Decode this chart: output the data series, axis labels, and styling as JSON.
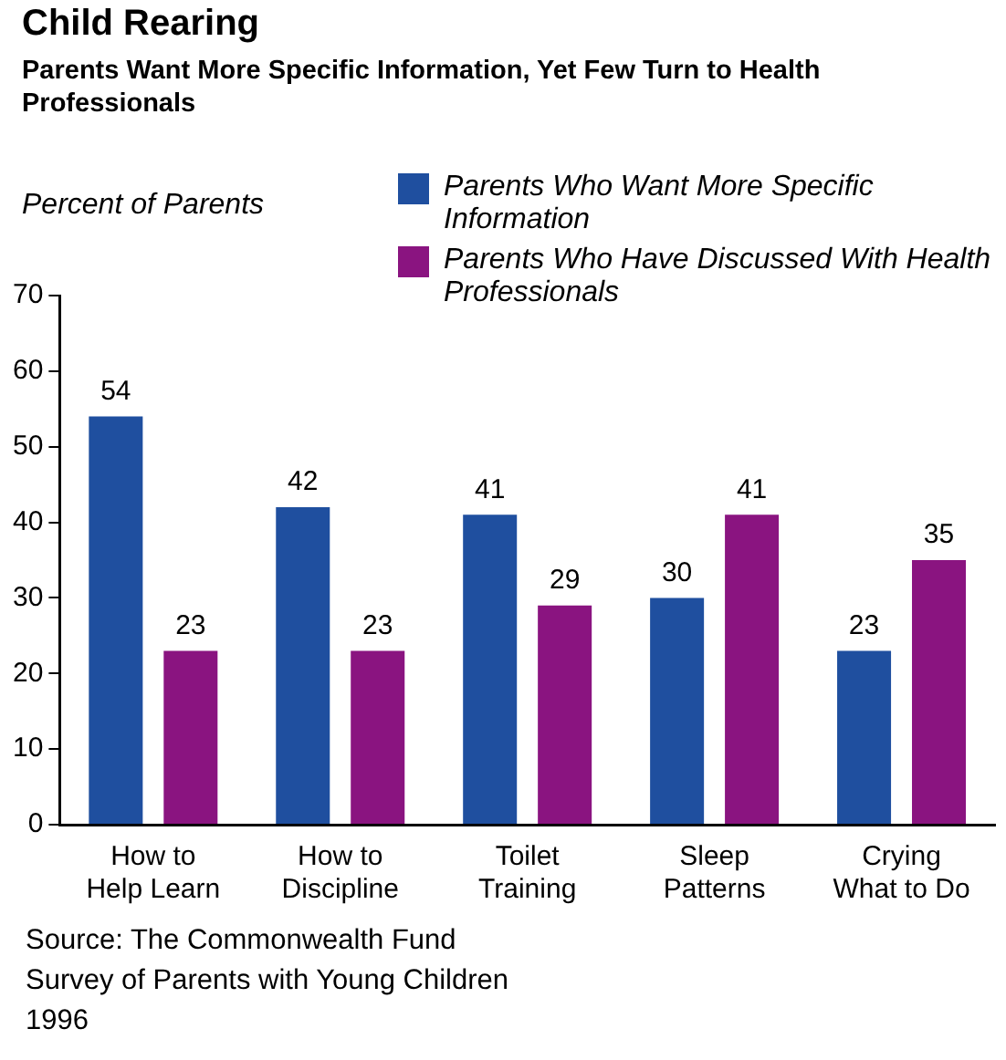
{
  "chart_data": {
    "type": "bar",
    "title": "Child Rearing",
    "subtitle": "Parents Want More Specific Information, Yet Few Turn to Health Professionals",
    "ylabel": "Percent of Parents",
    "categories": [
      "How to\nHelp Learn",
      "How to\nDiscipline",
      "Toilet\nTraining",
      "Sleep\nPatterns",
      "Crying\nWhat to Do"
    ],
    "series": [
      {
        "name": "Parents Who Want More Specific Information",
        "color": "#1f4f9f",
        "values": [
          54,
          42,
          41,
          30,
          23
        ]
      },
      {
        "name": "Parents Who Have Discussed With Health Professionals",
        "color": "#8a1480",
        "values": [
          23,
          23,
          29,
          41,
          35
        ]
      }
    ],
    "ylim": [
      0,
      70
    ],
    "yticks": [
      0,
      10,
      20,
      30,
      40,
      50,
      60,
      70
    ],
    "grid": false,
    "legend": "top right",
    "data_labels": true,
    "annotations": [
      "Source: The Commonwealth Fund",
      "Survey of Parents with Young Children",
      "1996"
    ]
  }
}
